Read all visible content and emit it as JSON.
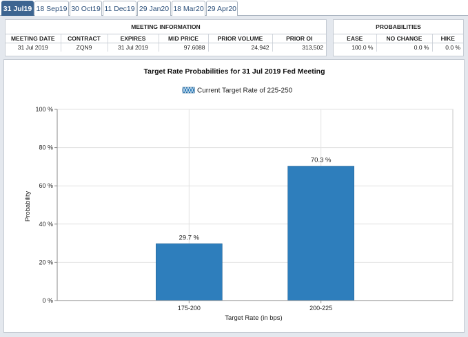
{
  "tabs": [
    {
      "label": "31 Jul19",
      "active": true
    },
    {
      "label": "18 Sep19",
      "active": false
    },
    {
      "label": "30 Oct19",
      "active": false
    },
    {
      "label": "11 Dec19",
      "active": false
    },
    {
      "label": "29 Jan20",
      "active": false
    },
    {
      "label": "18 Mar20",
      "active": false
    },
    {
      "label": "29 Apr20",
      "active": false
    }
  ],
  "meeting_info": {
    "caption": "MEETING INFORMATION",
    "headers": [
      "MEETING DATE",
      "CONTRACT",
      "EXPIRES",
      "MID PRICE",
      "PRIOR VOLUME",
      "PRIOR OI"
    ],
    "values": [
      "31 Jul 2019",
      "ZQN9",
      "31 Jul 2019",
      "97.6088",
      "24,942",
      "313,502"
    ]
  },
  "probabilities": {
    "caption": "PROBABILITIES",
    "headers": [
      "EASE",
      "NO CHANGE",
      "HIKE"
    ],
    "values": [
      "100.0 %",
      "0.0 %",
      "0.0 %"
    ]
  },
  "chart_data": {
    "type": "bar",
    "title": "Target Rate Probabilities for 31 Jul 2019 Fed Meeting",
    "legend": "Current Target Rate of 225-250",
    "legend_position": "top-center",
    "categories": [
      "175-200",
      "200-225"
    ],
    "values": [
      29.7,
      70.3
    ],
    "data_labels": [
      "29.7 %",
      "70.3 %"
    ],
    "xlabel": "Target Rate (in bps)",
    "ylabel": "Probability",
    "ylim": [
      0,
      100
    ],
    "yticks": [
      0,
      20,
      40,
      60,
      80,
      100
    ],
    "ytick_labels": [
      "0 %",
      "20 %",
      "40 %",
      "60 %",
      "80 %",
      "100 %"
    ],
    "grid": true,
    "bar_color": "#2e7ebc"
  }
}
